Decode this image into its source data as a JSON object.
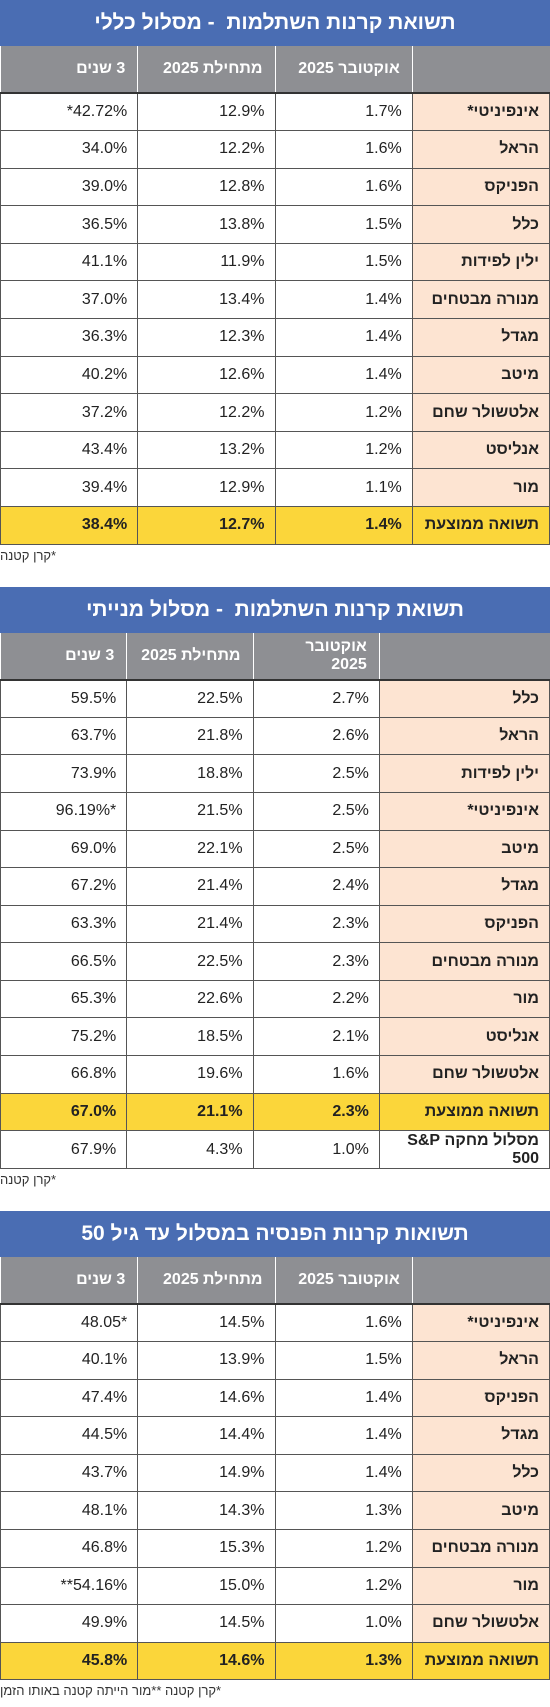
{
  "tables": [
    {
      "title": "תשואת קרנות השתלמות  - מסלול כללי",
      "headers": [
        "אוקטובר 2025",
        "מתחילת 2025",
        "3 שנים"
      ],
      "rows": [
        [
          "אינפיניטי*",
          "1.7%",
          "12.9%",
          "*42.72%"
        ],
        [
          "הראל",
          "1.6%",
          "12.2%",
          "34.0%"
        ],
        [
          "הפניקס",
          "1.6%",
          "12.8%",
          "39.0%"
        ],
        [
          "כלל",
          "1.5%",
          "13.8%",
          "36.5%"
        ],
        [
          "ילין לפידות",
          "1.5%",
          "11.9%",
          "41.1%"
        ],
        [
          "מנורה מבטחים",
          "1.4%",
          "13.4%",
          "37.0%"
        ],
        [
          "מגדל",
          "1.4%",
          "12.3%",
          "36.3%"
        ],
        [
          "מיטב",
          "1.4%",
          "12.6%",
          "40.2%"
        ],
        [
          "אלטשולר שחם",
          "1.2%",
          "12.2%",
          "37.2%"
        ],
        [
          "אנליסט",
          "1.2%",
          "13.2%",
          "43.4%"
        ],
        [
          "מור",
          "1.1%",
          "12.9%",
          "39.4%"
        ]
      ],
      "average_row": [
        "תשואה ממוצעת",
        "1.4%",
        "12.7%",
        "38.4%"
      ],
      "footnote": "*קרן קטנה"
    },
    {
      "title": "תשואת קרנות השתלמות  - מסלול מנייתי",
      "headers": [
        "אוקטובר 2025",
        "מתחילת 2025",
        "3 שנים"
      ],
      "rows": [
        [
          "כלל",
          "2.7%",
          "22.5%",
          "59.5%"
        ],
        [
          "הראל",
          "2.6%",
          "21.8%",
          "63.7%"
        ],
        [
          "ילין לפידות",
          "2.5%",
          "18.8%",
          "73.9%"
        ],
        [
          "אינפיניטי*",
          "2.5%",
          "21.5%",
          "96.19%*"
        ],
        [
          "מיטב",
          "2.5%",
          "22.1%",
          "69.0%"
        ],
        [
          "מגדל",
          "2.4%",
          "21.4%",
          "67.2%"
        ],
        [
          "הפניקס",
          "2.3%",
          "21.4%",
          "63.3%"
        ],
        [
          "מנורה מבטחים",
          "2.3%",
          "22.5%",
          "66.5%"
        ],
        [
          "מור",
          "2.2%",
          "22.6%",
          "65.3%"
        ],
        [
          "אנליסט",
          "2.1%",
          "18.5%",
          "75.2%"
        ],
        [
          "אלטשולר שחם",
          "1.6%",
          "19.6%",
          "66.8%"
        ]
      ],
      "average_row": [
        "תשואה ממוצעת",
        "2.3%",
        "21.1%",
        "67.0%"
      ],
      "extra_rows": [
        [
          "מסלול מחקה S&P 500",
          "1.0%",
          "4.3%",
          "67.9%"
        ]
      ],
      "footnote": "*קרן קטנה"
    },
    {
      "title": "תשואות קרנות הפנסיה במסלול עד גיל 50",
      "headers": [
        "אוקטובר 2025",
        "מתחילת 2025",
        "3 שנים"
      ],
      "rows": [
        [
          "אינפיניטי*",
          "1.6%",
          "14.5%",
          "48.05*"
        ],
        [
          "הראל",
          "1.5%",
          "13.9%",
          "40.1%"
        ],
        [
          "הפניקס",
          "1.4%",
          "14.6%",
          "47.4%"
        ],
        [
          "מגדל",
          "1.4%",
          "14.4%",
          "44.5%"
        ],
        [
          "כלל",
          "1.4%",
          "14.9%",
          "43.7%"
        ],
        [
          "מיטב",
          "1.3%",
          "14.3%",
          "48.1%"
        ],
        [
          "מנורה מבטחים",
          "1.2%",
          "15.3%",
          "46.8%"
        ],
        [
          "מור",
          "1.2%",
          "15.0%",
          "**54.16%"
        ],
        [
          "אלטשולר שחם",
          "1.0%",
          "14.5%",
          "49.9%"
        ]
      ],
      "average_row": [
        "תשואה ממוצעת",
        "1.3%",
        "14.6%",
        "45.8%"
      ],
      "footnote": "*קרן קטנה  **מור הייתה קטנה באותו הזמן"
    }
  ]
}
